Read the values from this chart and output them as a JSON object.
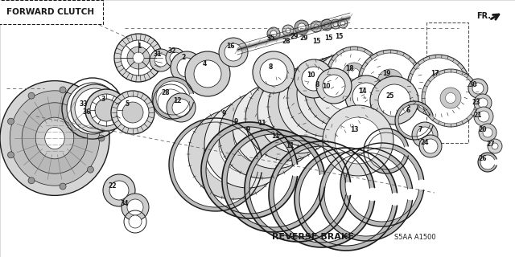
{
  "bg_color": "#f0f0ec",
  "white": "#ffffff",
  "black": "#1a1a1a",
  "gray_light": "#c8c8c8",
  "gray_med": "#888888",
  "forward_clutch": "FORWARD CLUTCH",
  "reverse_brake": "REVERSE BRAKE",
  "fr_label": "FR.",
  "part_code": "S5AA A1500",
  "xlim": [
    0,
    640
  ],
  "ylim": [
    0,
    320
  ]
}
